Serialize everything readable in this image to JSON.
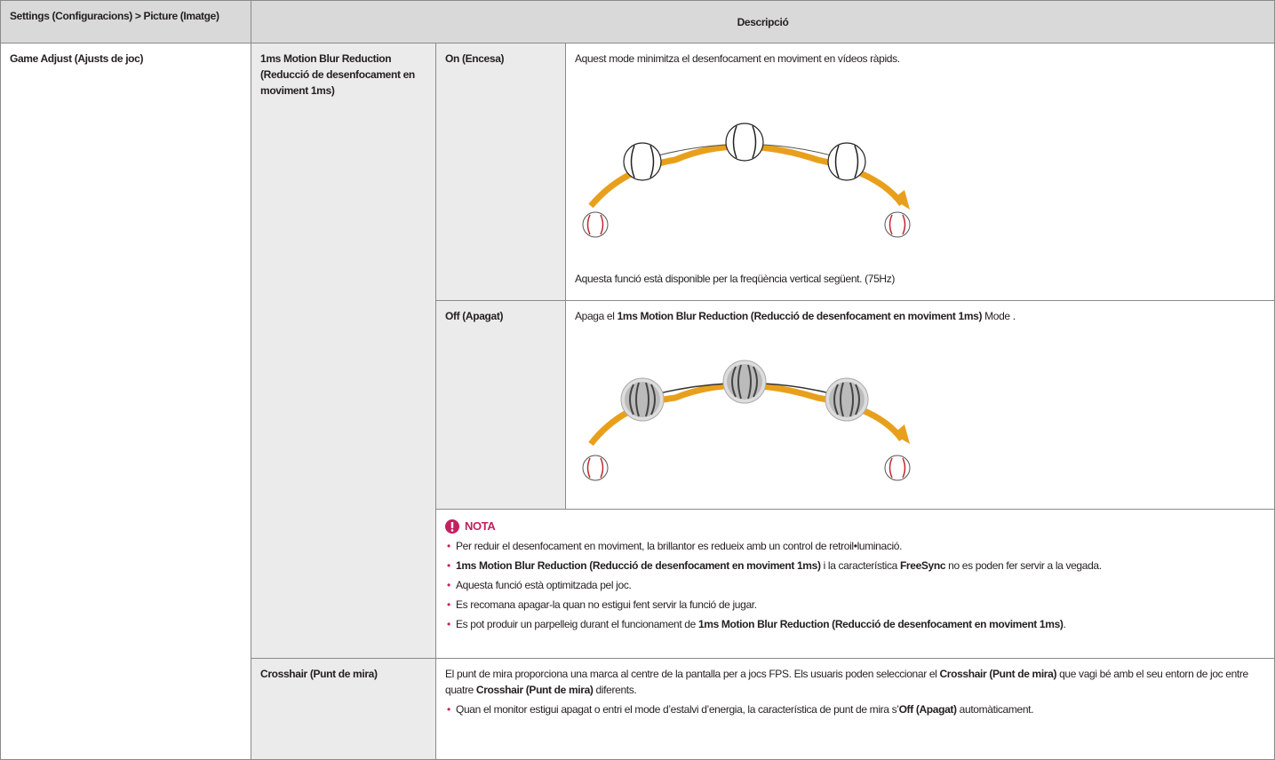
{
  "header": {
    "path": "Settings (Configuracions) > Picture (Imatge)",
    "description": "Descripció"
  },
  "section": "Game Adjust (Ajusts de joc)",
  "feature": "1ms Motion Blur Reduction (Reducció de desenfocament en moviment 1ms)",
  "options": [
    {
      "label": "On (Encesa)",
      "text": [
        "Aquest mode minimitza el desenfocament en moviment en vídeos ràpids."
      ],
      "footnote": "Aquesta funció està disponible per la freqüència vertical següent. (75Hz)"
    },
    {
      "label": "Off (Apagat)",
      "text": [
        "Apaga el ",
        {
          "text": "1ms Motion Blur Reduction (Reducció de desenfocament en moviment 1ms)",
          "bold": true
        },
        " Mode ."
      ]
    }
  ],
  "note": {
    "title": "NOTA",
    "items": [
      [
        "Per reduir el desenfocament en moviment, la brillantor es redueix amb un control de retroil•luminació."
      ],
      [
        {
          "text": "1ms Motion Blur Reduction (Reducció de desenfocament en moviment 1ms)",
          "bold": true
        },
        " i la característica ",
        {
          "text": "FreeSync",
          "bold": true
        },
        " no es poden fer servir a la vegada."
      ],
      [
        "Aquesta funció està optimitzada pel joc."
      ],
      [
        "Es recomana apagar-la quan no estigui fent servir la funció de jugar."
      ],
      [
        "Es pot produir un parpelleig durant el funcionament de ",
        {
          "text": "1ms Motion Blur Reduction (Reducció de desenfocament en moviment 1ms)",
          "bold": true
        },
        "."
      ]
    ]
  },
  "crosshair": {
    "label": "Crosshair (Punt de mira)",
    "text": [
      "El punt de mira proporciona una marca al centre de la pantalla per a jocs FPS. Els usuaris poden seleccionar el ",
      {
        "text": "Crosshair (Punt de mira)",
        "bold": true
      },
      " que vagi bé amb el seu entorn de joc entre quatre ",
      {
        "text": "Crosshair (Punt de mira)",
        "bold": true
      },
      " diferents."
    ],
    "items": [
      [
        "Quan el monitor estigui apagat o entri el mode d’estalvi d’energia, la característica de punt de mira s’",
        {
          "text": "Off (Apagat)",
          "bold": true
        },
        " automàticament."
      ]
    ]
  }
}
